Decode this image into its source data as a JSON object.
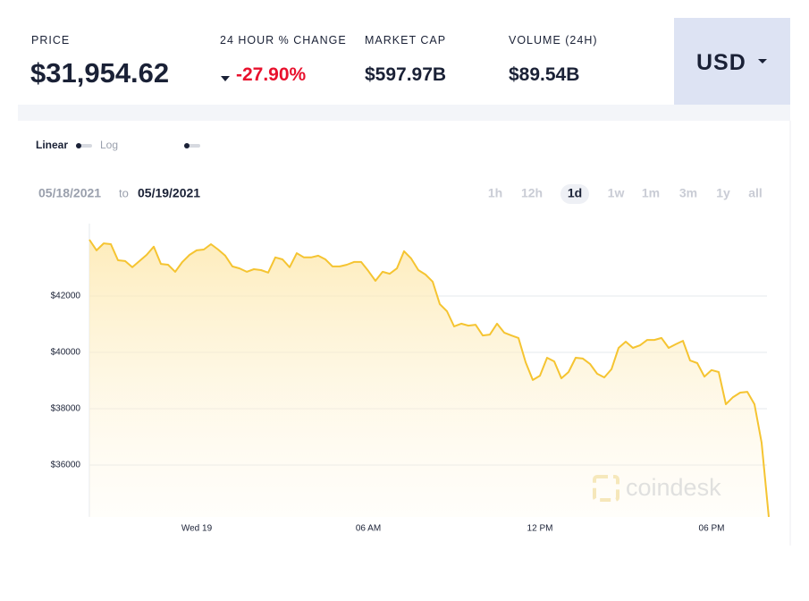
{
  "header": {
    "price": {
      "label": "PRICE",
      "value": "$31,954.62"
    },
    "change": {
      "label": "24 HOUR % CHANGE",
      "value": "-27.90%"
    },
    "market_cap": {
      "label": "MARKET CAP",
      "value": "$597.97B"
    },
    "volume": {
      "label": "VOLUME (24H)",
      "value": "$89.54B"
    },
    "currency": "USD"
  },
  "controls": {
    "scales": [
      "Linear",
      "Log"
    ],
    "date_from": "05/18/2021",
    "range_joiner": "to",
    "date_to": "05/19/2021",
    "ranges": [
      "1h",
      "12h",
      "1d",
      "1w",
      "1m",
      "3m",
      "1y",
      "all"
    ],
    "selected_range": 2
  },
  "watermark": "coindesk",
  "chart_data": {
    "type": "line",
    "color": "#f5c431",
    "grid": true,
    "categories": [
      null,
      null,
      null,
      null,
      null,
      null,
      null,
      null,
      null,
      null,
      null,
      null,
      null,
      null,
      null,
      "Wed 19",
      null,
      null,
      null,
      null,
      null,
      null,
      null,
      null,
      null,
      null,
      null,
      null,
      null,
      null,
      null,
      null,
      null,
      null,
      null,
      null,
      null,
      null,
      null,
      "06 AM",
      null,
      null,
      null,
      null,
      null,
      null,
      null,
      null,
      null,
      null,
      null,
      null,
      null,
      null,
      null,
      null,
      null,
      null,
      null,
      null,
      null,
      null,
      null,
      "12 PM",
      null,
      null,
      null,
      null,
      null,
      null,
      null,
      null,
      null,
      null,
      null,
      null,
      null,
      null,
      null,
      null,
      null,
      null,
      null,
      null,
      null,
      null,
      null,
      "06 PM",
      null,
      null,
      null,
      null,
      null,
      null,
      null,
      null
    ],
    "values": [
      44000,
      43620,
      43870,
      43840,
      43270,
      43240,
      43020,
      43240,
      43460,
      43750,
      43140,
      43110,
      42860,
      43210,
      43460,
      43620,
      43650,
      43840,
      43650,
      43430,
      43050,
      42980,
      42860,
      42950,
      42920,
      42830,
      43370,
      43300,
      43020,
      43520,
      43370,
      43370,
      43430,
      43300,
      43050,
      43050,
      43110,
      43210,
      43210,
      42890,
      42540,
      42860,
      42790,
      42980,
      43590,
      43330,
      42920,
      42760,
      42510,
      41710,
      41460,
      40920,
      41020,
      40950,
      40980,
      40600,
      40630,
      41020,
      40700,
      40600,
      40510,
      39650,
      39020,
      39170,
      39810,
      39680,
      39080,
      39300,
      39810,
      39780,
      39590,
      39240,
      39110,
      39400,
      40160,
      40380,
      40160,
      40250,
      40440,
      40440,
      40510,
      40160,
      40290,
      40410,
      39710,
      39620,
      39140,
      39370,
      39300,
      38160,
      38410,
      38570,
      38600,
      38160,
      36790,
      34160
    ],
    "ylim": [
      34160,
      44570
    ],
    "yticks": [
      {
        "value": 36000,
        "label": "$36000"
      },
      {
        "value": 38000,
        "label": "$38000"
      },
      {
        "value": 40000,
        "label": "$40000"
      },
      {
        "value": 42000,
        "label": "$42000"
      }
    ]
  }
}
